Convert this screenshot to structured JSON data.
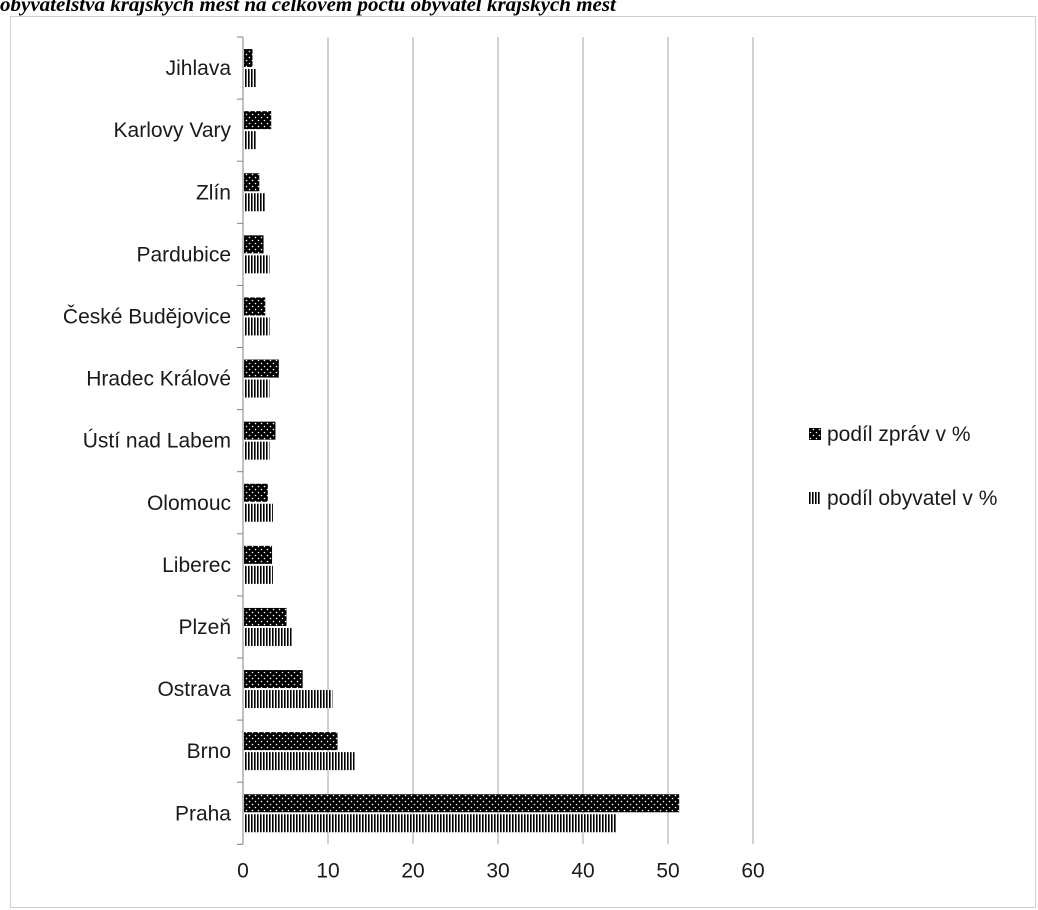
{
  "title": "obyvatelstva krajských měst na celkovém počtu obyvatel krajských měst",
  "colors": {
    "grid": "#a6a6a6",
    "axis": "#808080",
    "bar": "#000000",
    "text": "#1a1a1a"
  },
  "chart_data": {
    "type": "bar",
    "orientation": "horizontal",
    "categories": [
      "Jihlava",
      "Karlovy Vary",
      "Zlín",
      "Pardubice",
      "České Budějovice",
      "Hradec Králové",
      "Ústí nad Labem",
      "Olomouc",
      "Liberec",
      "Plzeň",
      "Ostrava",
      "Brno",
      "Praha"
    ],
    "series": [
      {
        "name": "podíl zpráv v %",
        "pattern": "dots",
        "values": [
          1.0,
          3.2,
          1.8,
          2.3,
          2.5,
          4.1,
          3.7,
          2.8,
          3.3,
          5.0,
          6.9,
          11.0,
          51.2
        ]
      },
      {
        "name": "podíl obyvatel v %",
        "pattern": "vertical-stripes",
        "values": [
          1.4,
          1.4,
          2.5,
          3.0,
          3.0,
          3.0,
          3.0,
          3.4,
          3.4,
          5.6,
          10.4,
          13.0,
          43.8
        ]
      }
    ],
    "xlim": [
      0,
      60
    ],
    "xticks": [
      "0",
      "10",
      "20",
      "30",
      "40",
      "50",
      "60"
    ],
    "grid": "vertical",
    "legend": "right"
  }
}
